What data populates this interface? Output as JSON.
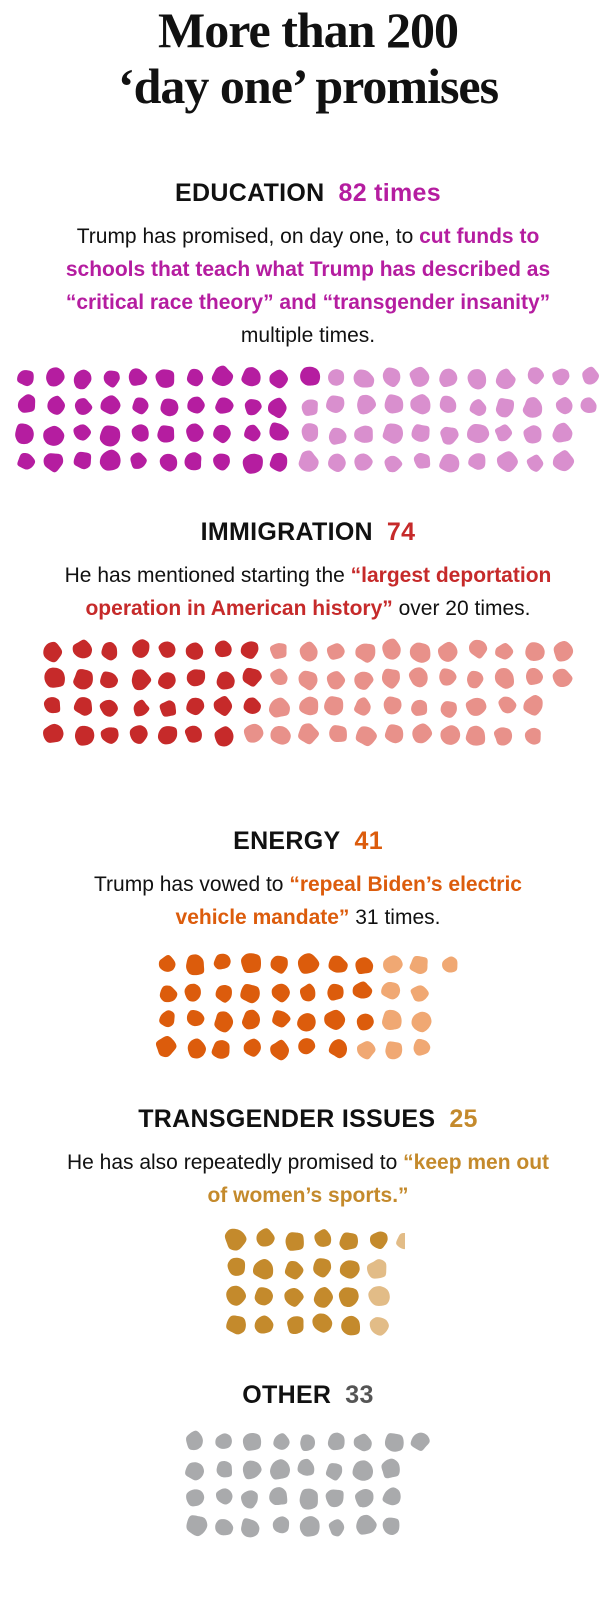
{
  "title": {
    "line1": "More than 200",
    "line2": "‘day one’ promises"
  },
  "sections": [
    {
      "heading": "EDUCATION",
      "count_label": "82 times",
      "desc_pre": "Trump has promised, on day one, to ",
      "desc_highlight": "cut funds to schools that teach what Trump has described as “critical race theory” and “transgender insanity”",
      "desc_post": " multiple times.",
      "color": "#b51da0",
      "light_color": "#d98fce"
    },
    {
      "heading": "IMMIGRATION",
      "count_label": "74",
      "desc_pre": "He has mentioned starting the ",
      "desc_highlight": "“largest deportation operation in American history”",
      "desc_post": " over 20 times.",
      "color": "#c62a2a",
      "light_color": "#e8918a"
    },
    {
      "heading": "ENERGY",
      "count_label": "41",
      "desc_pre": "Trump has vowed to ",
      "desc_highlight": "“repeal Biden’s electric vehicle mandate”",
      "desc_post": " 31 times.",
      "color": "#dc5c0c",
      "light_color": "#f0a873"
    },
    {
      "heading": "TRANSGENDER ISSUES",
      "count_label": "25",
      "desc_pre": "He has also repeatedly promised to ",
      "desc_highlight": "“keep men out of women’s sports.”",
      "desc_post": "",
      "color": "#c48a2c",
      "light_color": "#e2bc87"
    },
    {
      "heading": "OTHER",
      "count_label": "33",
      "desc_pre": "",
      "desc_highlight": "",
      "desc_post": "",
      "color": "#a9aaac",
      "light_color": "#a9aaac",
      "count_color": "#555555"
    }
  ],
  "chart_data": {
    "type": "unit",
    "categories": [
      "EDUCATION",
      "IMMIGRATION",
      "ENERGY",
      "TRANSGENDER ISSUES",
      "OTHER"
    ],
    "values": [
      82,
      74,
      41,
      25,
      33
    ],
    "highlighted": [
      41,
      31,
      31,
      21,
      0
    ],
    "columns": [
      21,
      19,
      11,
      6,
      9
    ],
    "colors": [
      "#b51da0",
      "#c62a2a",
      "#dc5c0c",
      "#c48a2c",
      "#a9aaac"
    ],
    "light_colors": [
      "#d98fce",
      "#e8918a",
      "#f0a873",
      "#e2bc87",
      "#a9aaac"
    ]
  }
}
